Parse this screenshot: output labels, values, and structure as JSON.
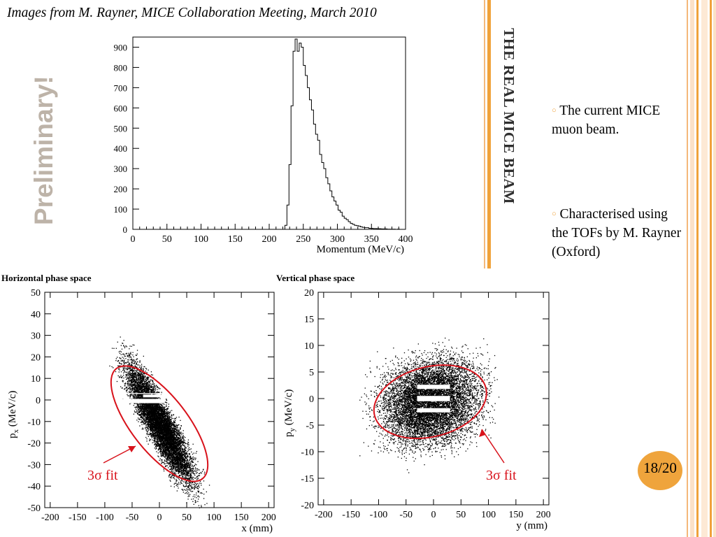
{
  "caption": "Images from M. Rayner, MICE Collaboration Meeting, March 2010",
  "watermark": "Preliminary!",
  "slide_title": "THE REAL MICE BEAM",
  "bullets": [
    {
      "text": "The current MICE muon beam."
    },
    {
      "text": "Characterised using the TOFs by M. Rayner (Oxford)"
    }
  ],
  "page_number": "18/20",
  "theme": {
    "accent": "#f0a23a",
    "watermark": "#bdb3a8",
    "fit": "#d8121b"
  },
  "chart_data": [
    {
      "type": "histogram",
      "xlabel": "Momentum (MeV/c)",
      "ylabel": "",
      "xlim": [
        0,
        400
      ],
      "ylim": [
        0,
        950
      ],
      "xticks": [
        0,
        50,
        100,
        150,
        200,
        250,
        300,
        350,
        400
      ],
      "yticks": [
        0,
        100,
        200,
        300,
        400,
        500,
        600,
        700,
        800,
        900
      ],
      "x": [
        220,
        223,
        226,
        229,
        232,
        235,
        238,
        241,
        244,
        247,
        250,
        253,
        256,
        259,
        262,
        265,
        268,
        271,
        274,
        277,
        280,
        283,
        286,
        289,
        292,
        295,
        298,
        301,
        304,
        307,
        310,
        313,
        316,
        319,
        322,
        325,
        328,
        331,
        334,
        337,
        340,
        343,
        346,
        349,
        352,
        355,
        358,
        361,
        364,
        367,
        370,
        373,
        376,
        379,
        382,
        385,
        388,
        391,
        394,
        397
      ],
      "values": [
        0,
        20,
        120,
        320,
        610,
        880,
        940,
        880,
        920,
        900,
        810,
        760,
        700,
        640,
        590,
        520,
        470,
        440,
        370,
        330,
        300,
        255,
        225,
        190,
        160,
        140,
        120,
        95,
        85,
        65,
        55,
        48,
        38,
        30,
        25,
        20,
        18,
        16,
        12,
        10,
        8,
        8,
        5,
        5,
        4,
        4,
        3,
        3,
        2,
        2,
        2,
        1,
        1,
        1,
        1,
        0,
        1,
        0,
        0,
        0
      ]
    },
    {
      "type": "scatter",
      "title": "Horizontal phase space",
      "xlabel": "x (mm)",
      "ylabel": "p_x (MeV/c)",
      "ylabel_main": "p",
      "ylabel_sub": "x",
      "ylabel_unit": " (MeV/c)",
      "xlim": [
        -210,
        210
      ],
      "ylim": [
        -50,
        50
      ],
      "xticks": [
        -200,
        -150,
        -100,
        -50,
        0,
        50,
        100,
        150,
        200
      ],
      "yticks": [
        -50,
        -40,
        -30,
        -20,
        -10,
        0,
        10,
        20,
        30,
        40,
        50
      ],
      "fit_ellipse": {
        "label": "3σ fit",
        "cx": 0,
        "cy": -11,
        "rx": 120,
        "ry": 13,
        "angle_deg": -62
      },
      "annotation": "3σ fit"
    },
    {
      "type": "scatter",
      "title": "Vertical phase space",
      "xlabel": "y (mm)",
      "ylabel": "p_y (MeV/c)",
      "ylabel_main": "p",
      "ylabel_sub": "y",
      "ylabel_unit": " (MeV/c)",
      "xlim": [
        -210,
        210
      ],
      "ylim": [
        -20,
        20
      ],
      "xticks": [
        -200,
        -150,
        -100,
        -50,
        0,
        50,
        100,
        150,
        200
      ],
      "yticks": [
        -20,
        -15,
        -10,
        -5,
        0,
        5,
        10,
        15,
        20
      ],
      "fit_ellipse": {
        "label": "3σ fit",
        "cx": -6,
        "cy": -0.6,
        "rx": 85,
        "ry": 7,
        "angle_deg": 10
      },
      "annotation": "3σ fit"
    }
  ]
}
